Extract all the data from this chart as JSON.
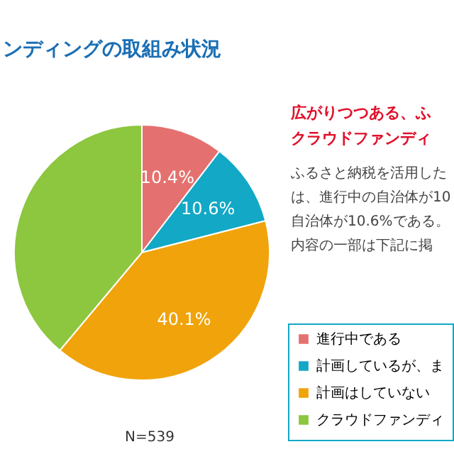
{
  "chart_data": {
    "type": "pie",
    "title": "ンディングの取組み状況",
    "categories": [
      "進行中である",
      "計画しているが、ま",
      "計画はしていない",
      "クラウドファンディ"
    ],
    "values": [
      10.4,
      10.6,
      40.1,
      38.9
    ],
    "colors": [
      "#e4716f",
      "#12a8c6",
      "#f0a30a",
      "#8dc63f"
    ],
    "value_labels": [
      "10.4%",
      "10.6%",
      "40.1%",
      null
    ],
    "legend": "bottom right",
    "annotations": [
      "広がりつつある、ふ",
      "クラウドファンディ",
      "ふるさと納税を活用した",
      "は、進行中の自治体が10",
      "自治体が10.6%である。",
      "内容の一部は下記に掲",
      "N=539"
    ]
  }
}
